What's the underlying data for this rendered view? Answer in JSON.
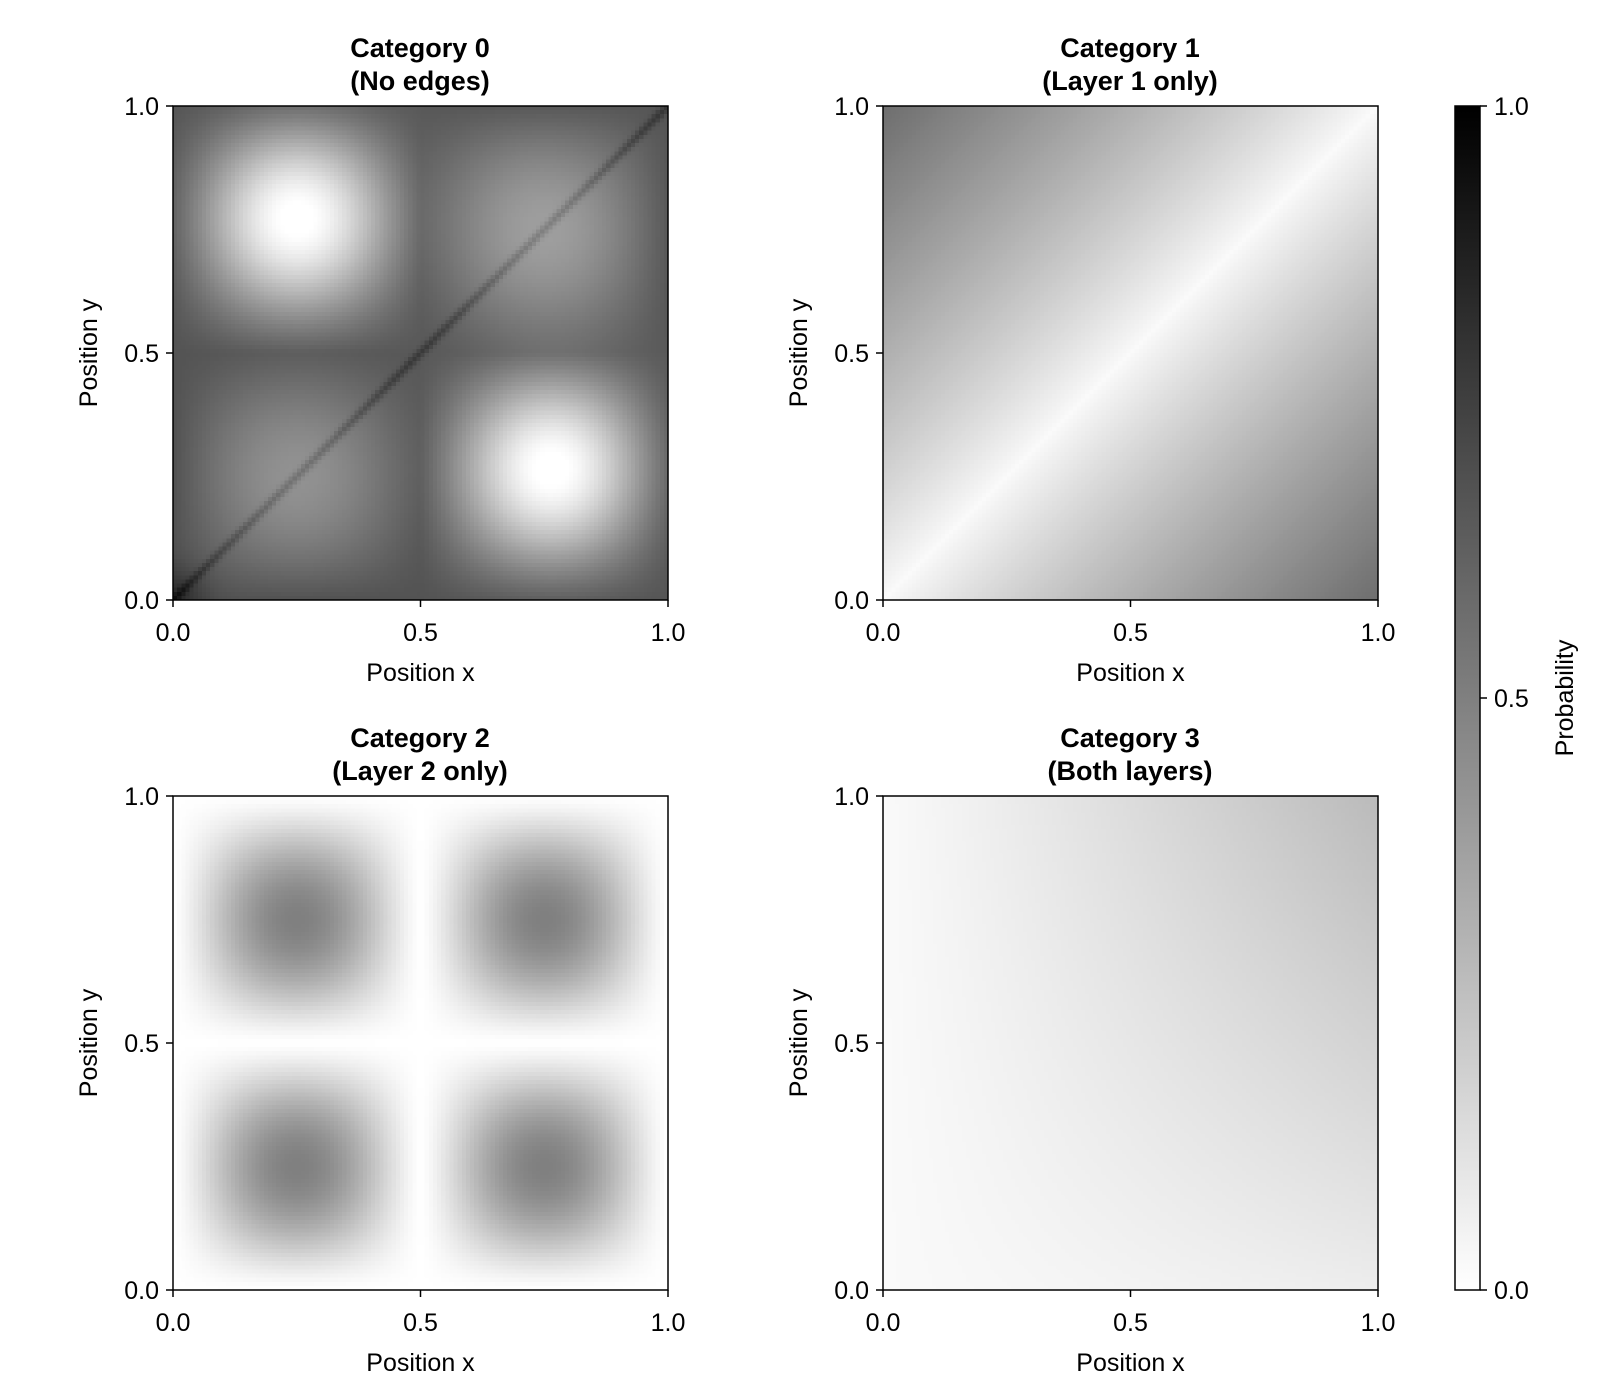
{
  "chart_data": [
    {
      "type": "heatmap",
      "title": [
        "Category 0",
        "(No edges)"
      ],
      "xlabel": "Position x",
      "ylabel": "Position y",
      "xlim": [
        0,
        1
      ],
      "ylim": [
        0,
        1
      ],
      "xticks": [
        "0.0",
        "0.5",
        "1.0"
      ],
      "yticks": [
        "0.0",
        "0.5",
        "1.0"
      ],
      "pattern": "dark cross at x=0.5 and y=0.5 with dark diagonal; light blobs centered near (0.25,0.75) and (0.75,0.25), medium blobs near (0.25,0.25) and (0.75,0.75); darkest near (0,0) and (0.5,0.5)",
      "value_range": [
        0.1,
        0.95
      ]
    },
    {
      "type": "heatmap",
      "title": [
        "Category 1",
        "(Layer 1 only)"
      ],
      "xlabel": "Position x",
      "ylabel": "Position y",
      "xlim": [
        0,
        1
      ],
      "ylim": [
        0,
        1
      ],
      "xticks": [
        "0.0",
        "0.5",
        "1.0"
      ],
      "yticks": [
        "0.0",
        "0.5",
        "1.0"
      ],
      "pattern": "probability increases with |x - y|; near 0 along the diagonal, about 0.55 at the corners (0,1) and (1,0)",
      "value_range": [
        0.0,
        0.55
      ]
    },
    {
      "type": "heatmap",
      "title": [
        "Category 2",
        "(Layer 2 only)"
      ],
      "xlabel": "Position x",
      "ylabel": "Position y",
      "xlim": [
        0,
        1
      ],
      "ylim": [
        0,
        1
      ],
      "xticks": [
        "0.0",
        "0.5",
        "1.0"
      ],
      "yticks": [
        "0.0",
        "0.5",
        "1.0"
      ],
      "pattern": "four medium blobs centered at (0.25,0.25), (0.25,0.75), (0.75,0.25), (0.75,0.75); near 0 along edges and the lines x=0.5 and y=0.5",
      "value_range": [
        0.0,
        0.5
      ]
    },
    {
      "type": "heatmap",
      "title": [
        "Category 3",
        "(Both layers)"
      ],
      "xlabel": "Position x",
      "ylabel": "Position y",
      "xlim": [
        0,
        1
      ],
      "ylim": [
        0,
        1
      ],
      "xticks": [
        "0.0",
        "0.5",
        "1.0"
      ],
      "yticks": [
        "0.0",
        "0.5",
        "1.0"
      ],
      "pattern": "low values overall, increasing toward (1,1) where it reaches about 0.2",
      "value_range": [
        0.0,
        0.22
      ]
    }
  ],
  "colorbar": {
    "label": "Probability",
    "ticks": [
      "0.0",
      "0.5",
      "1.0"
    ],
    "range": [
      0,
      1
    ],
    "colormap": "white-to-black grayscale",
    "low_color": "#ffffff",
    "high_color": "#000000"
  }
}
